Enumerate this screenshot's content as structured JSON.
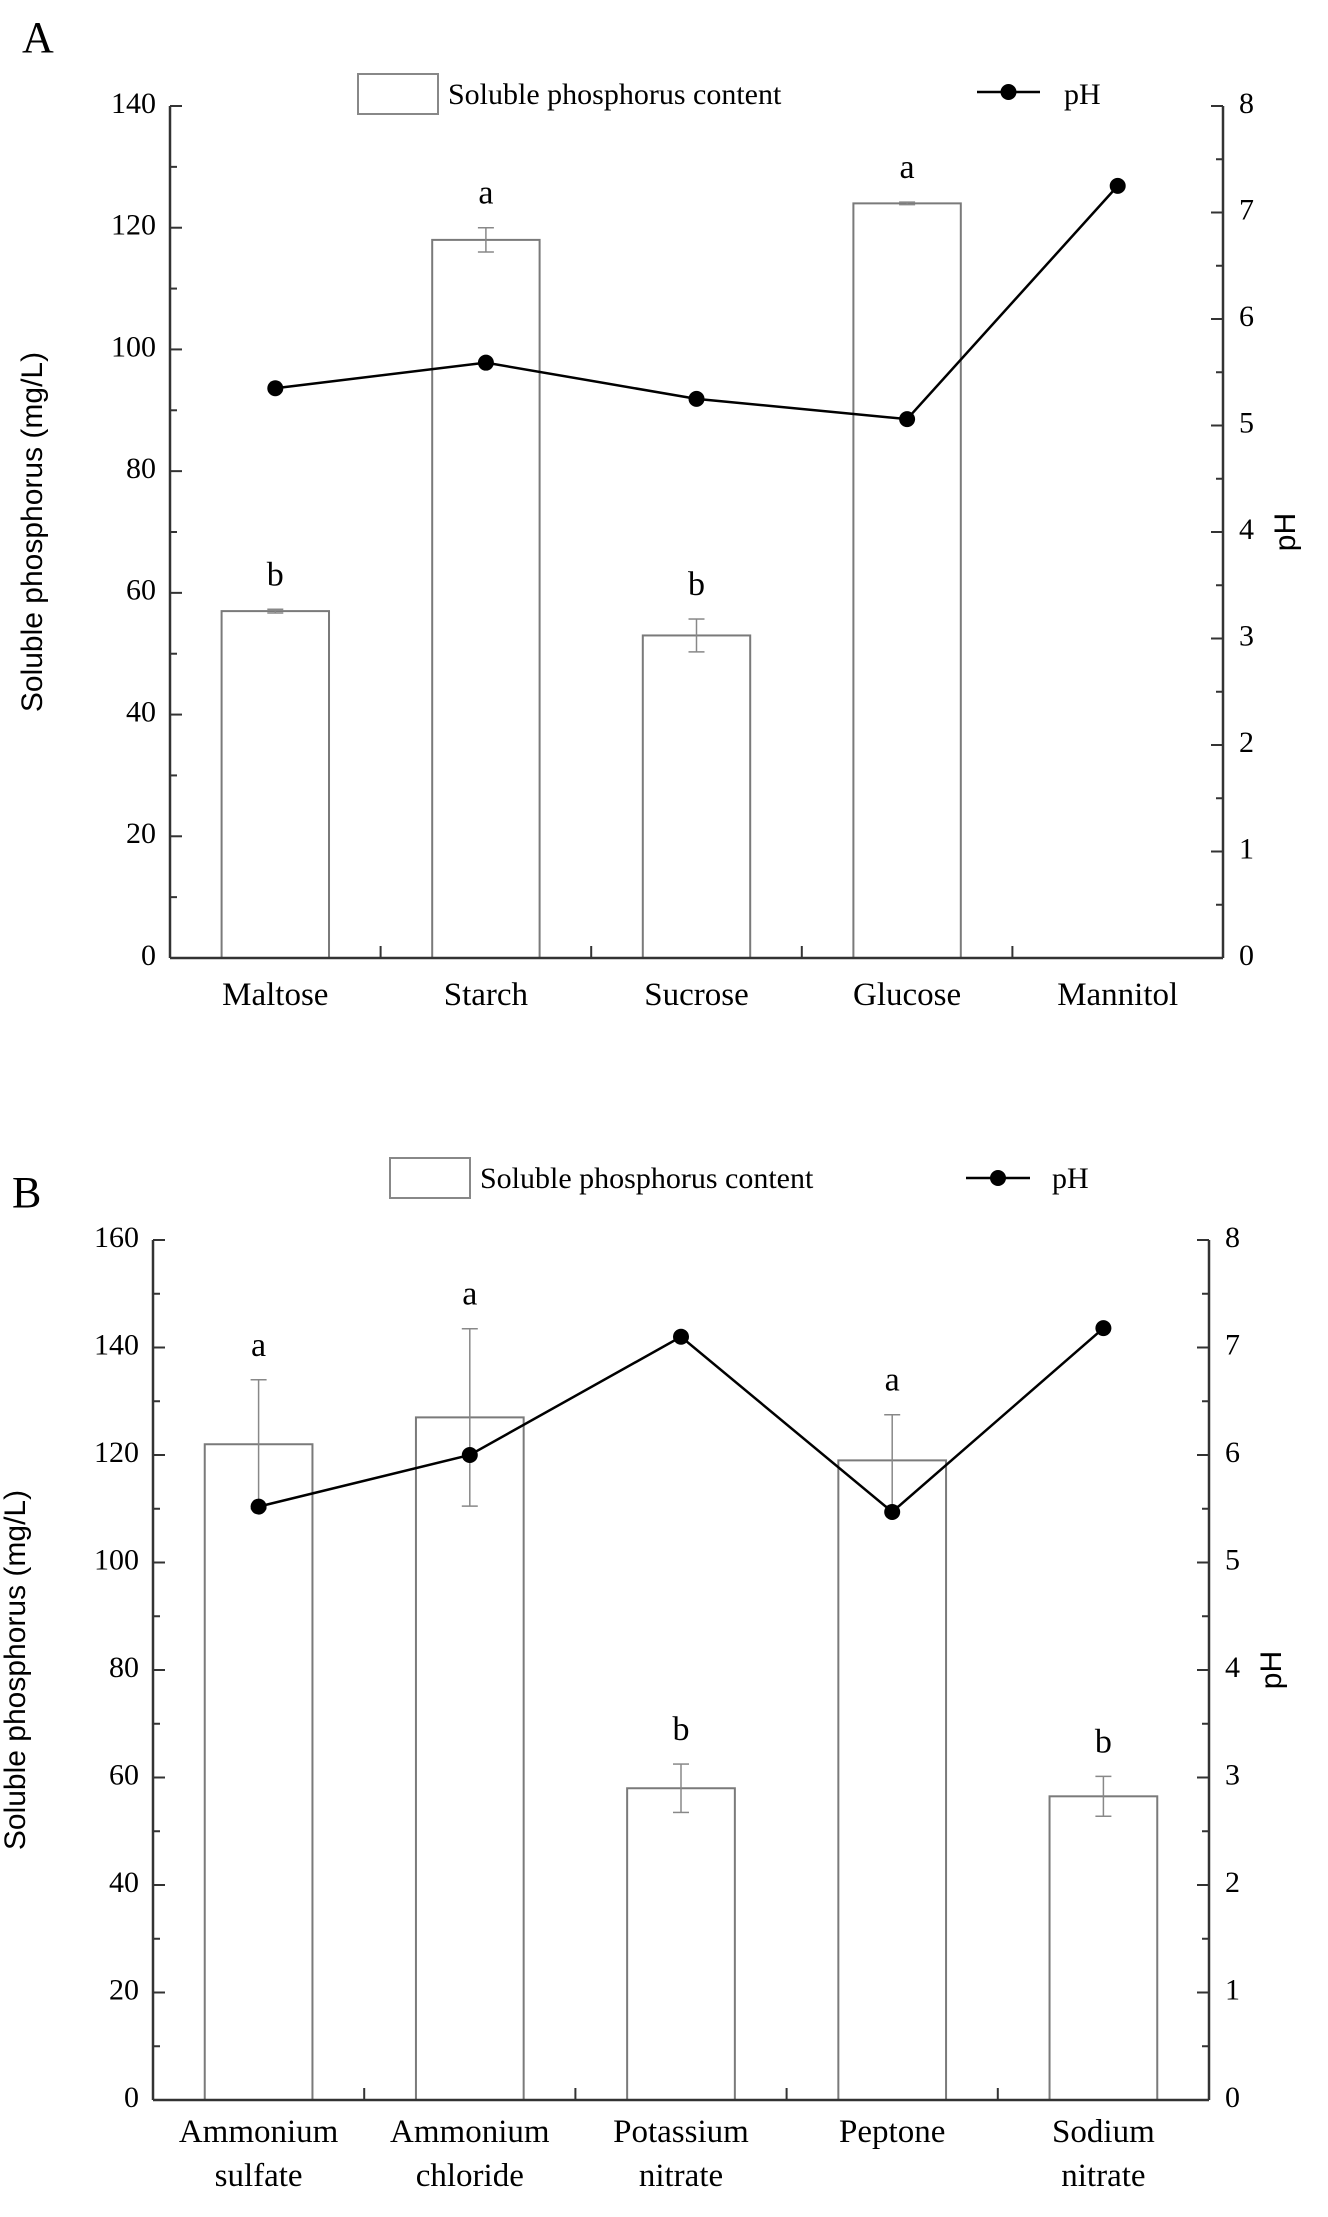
{
  "chart_data": [
    {
      "type": "bar",
      "panel": "A",
      "legend": {
        "bar_label": "Soluble phosphorus content",
        "line_label": "pH"
      },
      "ylabel": "Soluble phosphorus (mg/L)",
      "y2label": "pH",
      "ylim": [
        0,
        140
      ],
      "y2lim": [
        0,
        8
      ],
      "yticks": [
        "0",
        "20",
        "40",
        "60",
        "80",
        "100",
        "120",
        "140"
      ],
      "y2ticks": [
        "0",
        "1",
        "2",
        "3",
        "4",
        "5",
        "6",
        "7",
        "8"
      ],
      "categories": [
        "Maltose",
        "Starch",
        "Sucrose",
        "Glucose",
        "Mannitol"
      ],
      "series": [
        {
          "name": "Soluble phosphorus content",
          "axis": "left",
          "values": [
            57,
            118,
            53,
            124,
            null
          ],
          "errors": [
            0.3,
            2,
            2.7,
            0.2,
            null
          ],
          "significance": [
            "b",
            "a",
            "b",
            "a",
            ""
          ]
        },
        {
          "name": "pH",
          "axis": "right",
          "values": [
            5.35,
            5.59,
            5.25,
            5.06,
            7.25
          ]
        }
      ]
    },
    {
      "type": "bar",
      "panel": "B",
      "legend": {
        "bar_label": "Soluble phosphorus content",
        "line_label": "pH"
      },
      "ylabel": "Soluble phosphorus (mg/L)",
      "y2label": "pH",
      "ylim": [
        0,
        160
      ],
      "y2lim": [
        0,
        8
      ],
      "yticks": [
        "0",
        "20",
        "40",
        "60",
        "80",
        "100",
        "120",
        "140",
        "160"
      ],
      "y2ticks": [
        "0",
        "1",
        "2",
        "3",
        "4",
        "5",
        "6",
        "7",
        "8"
      ],
      "categories": [
        [
          "Ammonium",
          "sulfate"
        ],
        [
          "Ammonium",
          "chloride"
        ],
        [
          "Potassium",
          "nitrate"
        ],
        [
          "Peptone"
        ],
        [
          "Sodium",
          "nitrate"
        ]
      ],
      "series": [
        {
          "name": "Soluble phosphorus content",
          "axis": "left",
          "values": [
            122,
            127,
            58,
            119,
            56.5
          ],
          "errors": [
            12,
            16.5,
            4.5,
            8.5,
            3.7
          ],
          "significance": [
            "a",
            "a",
            "b",
            "a",
            "b"
          ]
        },
        {
          "name": "pH",
          "axis": "right",
          "values": [
            5.52,
            6.0,
            7.1,
            5.47,
            7.18
          ]
        }
      ]
    }
  ]
}
